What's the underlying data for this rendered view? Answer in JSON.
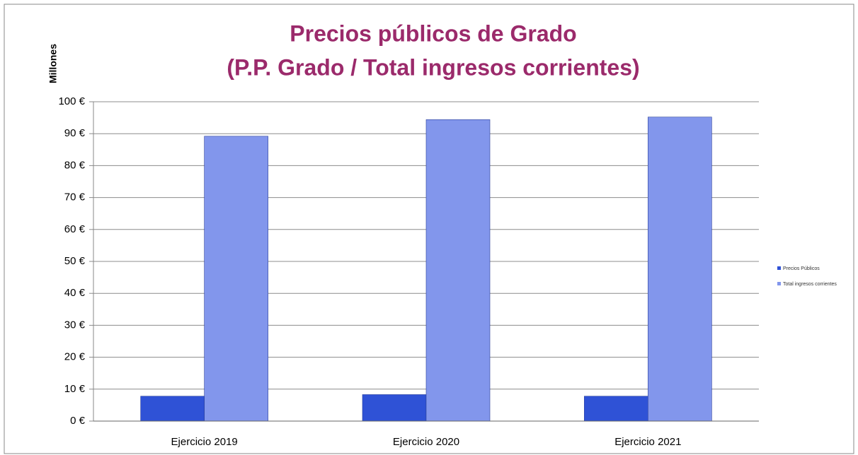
{
  "chart_data": {
    "type": "bar",
    "title": "Precios públicos de Grado",
    "subtitle": "(P.P. Grado / Total ingresos corrientes)",
    "y_label": "Millones",
    "categories": [
      "Ejercicio 2019",
      "Ejercicio 2020",
      "Ejercicio 2021"
    ],
    "series": [
      {
        "name": "Precios Públicos",
        "color": "#2f52d6",
        "values": [
          7.8,
          8.3,
          7.8
        ]
      },
      {
        "name": "Total ingresos corrientes",
        "color": "#8296ec",
        "values": [
          89.2,
          94.4,
          95.2
        ]
      }
    ],
    "ylim": [
      0,
      100
    ],
    "yticks": [
      {
        "value": 0,
        "label": "0 €"
      },
      {
        "value": 10,
        "label": "10 €"
      },
      {
        "value": 20,
        "label": "20 €"
      },
      {
        "value": 30,
        "label": "30 €"
      },
      {
        "value": 40,
        "label": "40 €"
      },
      {
        "value": 50,
        "label": "50 €"
      },
      {
        "value": 60,
        "label": "60 €"
      },
      {
        "value": 70,
        "label": "70 €"
      },
      {
        "value": 80,
        "label": "80 €"
      },
      {
        "value": 90,
        "label": "90 €"
      },
      {
        "value": 100,
        "label": "100 €"
      }
    ],
    "grid": true,
    "legend": "right"
  }
}
